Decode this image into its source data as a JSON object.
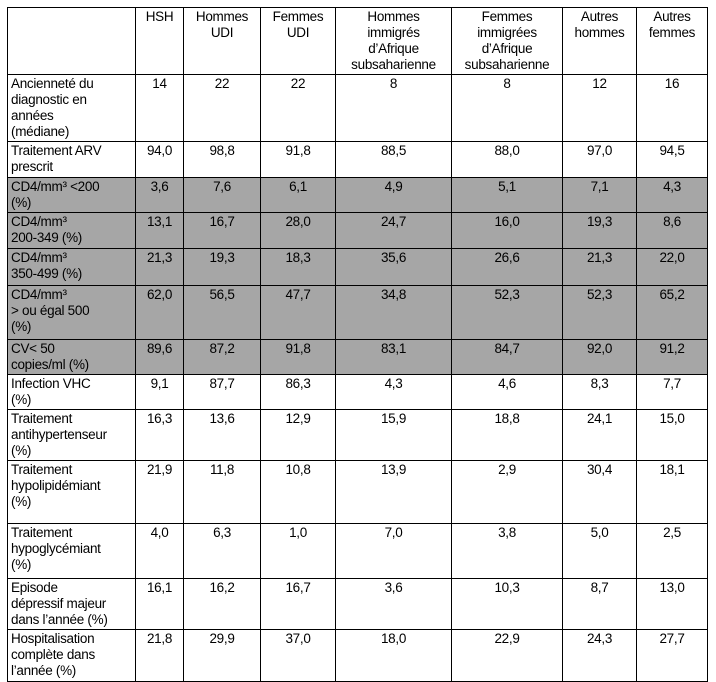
{
  "columns": [
    "",
    "HSH",
    "Hommes\nUDI",
    "Femmes\nUDI",
    "Hommes\nimmigrés\nd’Afrique\nsubsaharienne",
    "Femmes\nimmigrées\nd’Afrique\nsubsaharienne",
    "Autres\nhommes",
    "Autres\nfemmes"
  ],
  "shade_color": "#a6a6a6",
  "rows": [
    {
      "label": "Ancienneté du\ndiagnostic en\nannées\n(médiane)",
      "shaded": false,
      "values": [
        "14",
        "22",
        "22",
        "8",
        "8",
        "12",
        "16"
      ]
    },
    {
      "label": "Traitement ARV\nprescrit",
      "shaded": false,
      "values": [
        "94,0",
        "98,8",
        "91,8",
        "88,5",
        "88,0",
        "97,0",
        "94,5"
      ]
    },
    {
      "label": "CD4/mm³ <200\n(%)",
      "shaded": true,
      "values": [
        "3,6",
        "7,6",
        "6,1",
        "4,9",
        "5,1",
        "7,1",
        "4,3"
      ]
    },
    {
      "label": "CD4/mm³\n200-349 (%)",
      "shaded": true,
      "values": [
        "13,1",
        "16,7",
        "28,0",
        "24,7",
        "16,0",
        "19,3",
        "8,6"
      ]
    },
    {
      "label": "CD4/mm³\n350-499 (%)",
      "shaded": true,
      "values": [
        "21,3",
        "19,3",
        "18,3",
        "35,6",
        "26,6",
        "21,3",
        "22,0"
      ]
    },
    {
      "label": "CD4/mm³\n> ou égal 500\n(%)",
      "shaded": true,
      "values": [
        "62,0",
        "56,5",
        "47,7",
        "34,8",
        "52,3",
        "52,3",
        "65,2"
      ]
    },
    {
      "label": "CV< 50\ncopies/ml (%)",
      "shaded": true,
      "values": [
        "89,6",
        "87,2",
        "91,8",
        "83,1",
        "84,7",
        "92,0",
        "91,2"
      ]
    },
    {
      "label": "Infection VHC\n(%)",
      "shaded": false,
      "values": [
        "9,1",
        "87,7",
        "86,3",
        "4,3",
        "4,6",
        "8,3",
        "7,7"
      ]
    },
    {
      "label": "Traitement\nantihypertenseur\n(%)",
      "shaded": false,
      "values": [
        "16,3",
        "13,6",
        "12,9",
        "15,9",
        "18,8",
        "24,1",
        "15,0"
      ]
    },
    {
      "label": "Traitement\nhypolipidémiant\n(%)",
      "shaded": false,
      "values": [
        "21,9",
        "11,8",
        "10,8",
        "13,9",
        "2,9",
        "30,4",
        "18,1"
      ]
    },
    {
      "label": "Traitement\nhypoglycémiant\n(%)",
      "shaded": false,
      "values": [
        "4,0",
        "6,3",
        "1,0",
        "7,0",
        "3,8",
        "5,0",
        "2,5"
      ]
    },
    {
      "label": "Episode\ndépressif majeur\ndans l’année (%)",
      "shaded": false,
      "values": [
        "16,1",
        "16,2",
        "16,7",
        "3,6",
        "10,3",
        "8,7",
        "13,0"
      ]
    },
    {
      "label": "Hospitalisation\ncomplète dans\nl’année (%)",
      "shaded": false,
      "values": [
        "21,8",
        "29,9",
        "37,0",
        "18,0",
        "22,9",
        "24,3",
        "27,7"
      ]
    }
  ]
}
